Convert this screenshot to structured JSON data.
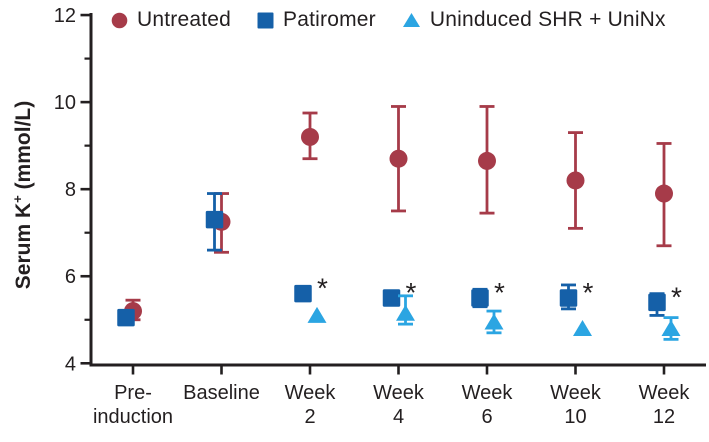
{
  "figure": {
    "background": "#ffffff",
    "text_color": "#231f20",
    "axis_color": "#231f20"
  },
  "legend": {
    "items": [
      {
        "label": "Untreated",
        "marker": "circle",
        "color": "#a63b49"
      },
      {
        "label": "Patiromer",
        "marker": "square",
        "color": "#1560a8"
      },
      {
        "label": "Uninduced SHR + UniNx",
        "marker": "triangle",
        "color": "#2ba5e2"
      }
    ]
  },
  "axes": {
    "y_title": {
      "pre": "Serum K",
      "sup": "+",
      "post": " (mmol/L)"
    },
    "y_ticks": [
      4,
      6,
      8,
      10,
      12
    ],
    "y_minor_ticks": [
      5,
      7,
      9,
      11
    ],
    "x_label_lines": [
      [
        "Pre-",
        "induction"
      ],
      [
        "Baseline",
        ""
      ],
      [
        "Week",
        "2"
      ],
      [
        "Week",
        "4"
      ],
      [
        "Week",
        "6"
      ],
      [
        "Week",
        "10"
      ],
      [
        "Week",
        "12"
      ]
    ]
  },
  "chart_data": {
    "type": "scatter",
    "title": "",
    "xlabel": "",
    "ylabel": "Serum K⁺ (mmol/L)",
    "ylim": [
      4,
      12
    ],
    "y_ticks": [
      4,
      6,
      8,
      10,
      12
    ],
    "grid": false,
    "legend_position": "top",
    "categories": [
      "Pre-induction",
      "Baseline",
      "Week 2",
      "Week 4",
      "Week 6",
      "Week 10",
      "Week 12"
    ],
    "series": [
      {
        "name": "Untreated",
        "marker": "circle",
        "color": "#a63b49",
        "values": [
          5.2,
          7.25,
          9.2,
          8.7,
          8.65,
          8.2,
          7.9
        ],
        "err_hi": [
          5.45,
          7.9,
          9.75,
          9.9,
          9.9,
          9.3,
          9.05
        ],
        "err_lo": [
          5.0,
          6.55,
          8.7,
          7.5,
          7.45,
          7.1,
          6.7
        ],
        "significance": [
          null,
          null,
          null,
          null,
          null,
          null,
          null
        ]
      },
      {
        "name": "Patiromer",
        "marker": "square",
        "color": "#1560a8",
        "values": [
          5.05,
          7.3,
          5.6,
          5.5,
          5.5,
          5.5,
          5.4
        ],
        "err_hi": [
          5.15,
          7.9,
          5.75,
          5.65,
          5.7,
          5.8,
          5.6
        ],
        "err_lo": [
          4.95,
          6.6,
          5.45,
          5.35,
          5.3,
          5.25,
          5.1
        ],
        "significance": [
          null,
          null,
          "*",
          "*",
          "*",
          "*",
          "*"
        ]
      },
      {
        "name": "Uninduced SHR + UniNx",
        "marker": "triangle",
        "color": "#2ba5e2",
        "values": [
          null,
          null,
          5.1,
          5.15,
          4.95,
          4.8,
          4.8
        ],
        "err_hi": [
          null,
          null,
          5.1,
          5.55,
          5.2,
          4.8,
          5.05
        ],
        "err_lo": [
          null,
          null,
          5.1,
          4.9,
          4.7,
          4.8,
          4.55
        ],
        "significance": [
          null,
          null,
          null,
          null,
          null,
          null,
          null
        ]
      }
    ]
  }
}
